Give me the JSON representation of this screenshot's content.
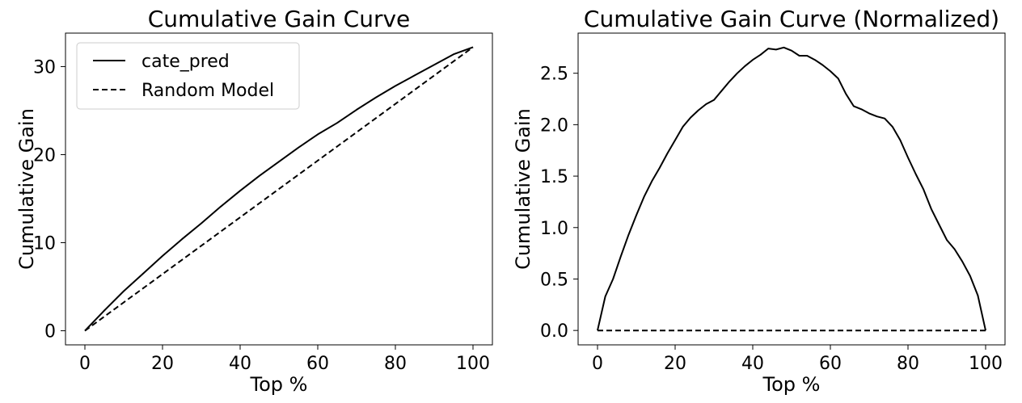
{
  "chart_data": [
    {
      "type": "line",
      "title": "Cumulative Gain Curve",
      "xlabel": "Top %",
      "ylabel": "Cumulative Gain",
      "xlim": [
        -5,
        105
      ],
      "ylim": [
        -1.6,
        33.8
      ],
      "xticks": [
        0,
        20,
        40,
        60,
        80,
        100
      ],
      "yticks": [
        0,
        10,
        20,
        30
      ],
      "grid": false,
      "legend": "top-left",
      "series": [
        {
          "name": "cate_pred",
          "style": "solid",
          "color": "#000000",
          "x": [
            0,
            5,
            10,
            15,
            20,
            25,
            30,
            35,
            40,
            45,
            50,
            55,
            60,
            65,
            70,
            75,
            80,
            85,
            90,
            95,
            100
          ],
          "y": [
            0,
            2.3,
            4.5,
            6.5,
            8.5,
            10.4,
            12.2,
            14.1,
            15.9,
            17.6,
            19.2,
            20.8,
            22.3,
            23.6,
            25.1,
            26.5,
            27.8,
            29.0,
            30.2,
            31.4,
            32.2
          ]
        },
        {
          "name": "Random Model",
          "style": "dashed",
          "color": "#000000",
          "x": [
            0,
            100
          ],
          "y": [
            0,
            32.2
          ]
        }
      ]
    },
    {
      "type": "line",
      "title": "Cumulative Gain Curve (Normalized)",
      "xlabel": "Top %",
      "ylabel": "Cumulative Gain",
      "xlim": [
        -5,
        105
      ],
      "ylim": [
        -0.14,
        2.89
      ],
      "xticks": [
        0,
        20,
        40,
        60,
        80,
        100
      ],
      "yticks": [
        0.0,
        0.5,
        1.0,
        1.5,
        2.0,
        2.5
      ],
      "ytick_labels": [
        "0.0",
        "0.5",
        "1.0",
        "1.5",
        "2.0",
        "2.5"
      ],
      "grid": false,
      "series": [
        {
          "style": "solid",
          "color": "#000000",
          "x": [
            0,
            2,
            4,
            6,
            8,
            10,
            12,
            14,
            16,
            18,
            20,
            22,
            24,
            26,
            28,
            30,
            32,
            34,
            36,
            38,
            40,
            42,
            44,
            46,
            48,
            50,
            52,
            54,
            56,
            58,
            60,
            62,
            64,
            66,
            68,
            70,
            72,
            74,
            76,
            78,
            80,
            82,
            84,
            86,
            88,
            90,
            92,
            94,
            96,
            98,
            100
          ],
          "y": [
            0,
            0.33,
            0.5,
            0.72,
            0.93,
            1.12,
            1.3,
            1.45,
            1.58,
            1.72,
            1.85,
            1.98,
            2.07,
            2.14,
            2.2,
            2.24,
            2.33,
            2.42,
            2.5,
            2.57,
            2.63,
            2.68,
            2.74,
            2.73,
            2.75,
            2.72,
            2.67,
            2.67,
            2.63,
            2.58,
            2.52,
            2.45,
            2.3,
            2.18,
            2.15,
            2.11,
            2.08,
            2.06,
            1.98,
            1.85,
            1.68,
            1.52,
            1.37,
            1.18,
            1.03,
            0.88,
            0.79,
            0.67,
            0.53,
            0.34,
            0
          ]
        },
        {
          "style": "dashed",
          "color": "#000000",
          "x": [
            0,
            100
          ],
          "y": [
            0,
            0
          ]
        }
      ]
    }
  ]
}
